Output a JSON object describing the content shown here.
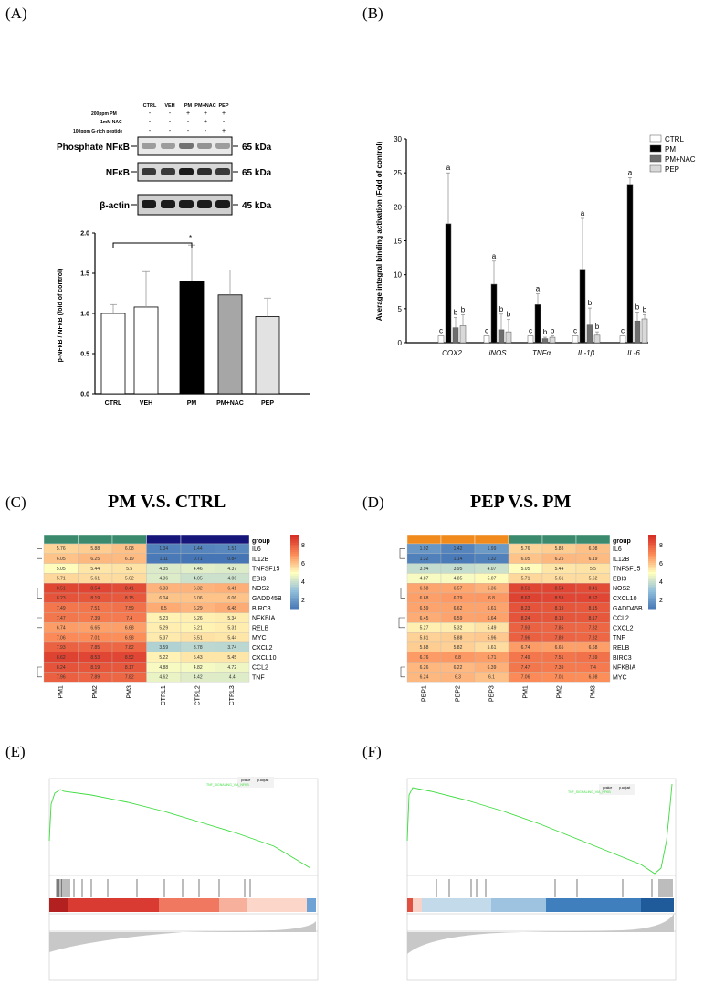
{
  "panel_labels": {
    "a": "(A)",
    "b": "(B)",
    "c": "(C)",
    "d": "(D)",
    "e": "(E)",
    "f": "(F)"
  },
  "panel_titles": {
    "c": "PM V.S. CTRL",
    "d": "PEP V.S. PM"
  },
  "western_blot": {
    "lane_labels": [
      "CTRL",
      "VEH",
      "PM",
      "PM+NAC",
      "PEP"
    ],
    "treatments": [
      {
        "name": "200ppm PM",
        "marks": [
          "-",
          "-",
          "+",
          "+",
          "+"
        ]
      },
      {
        "name": "1mM NAC",
        "marks": [
          "-",
          "-",
          "-",
          "+",
          "-"
        ]
      },
      {
        "name": "100ppm G-rich peptide",
        "marks": [
          "-",
          "-",
          "-",
          "-",
          "+"
        ]
      }
    ],
    "blots": [
      {
        "label": "Phosphate NFκB",
        "size": "65 kDa"
      },
      {
        "label": "NFκB",
        "size": "65 kDa"
      },
      {
        "label": "β-actin",
        "size": "45 kDa"
      }
    ]
  },
  "chart_data": [
    {
      "id": "A-bar",
      "type": "bar",
      "title": "",
      "categories": [
        "CTRL",
        "VEH",
        "PM",
        "PM+NAC",
        "PEP"
      ],
      "values": [
        1.0,
        1.08,
        1.4,
        1.23,
        0.96
      ],
      "errors": [
        0.11,
        0.44,
        0.45,
        0.31,
        0.23
      ],
      "colors": [
        "#ffffff",
        "#ffffff",
        "#000000",
        "#a6a6a6",
        "#e2e2e2"
      ],
      "ylabel": "p-NFκB / NFκB (fold of control)",
      "ylim": [
        0,
        2.0
      ],
      "yticks": [
        "0.0",
        "0.5",
        "1.0",
        "1.5",
        "2.0"
      ],
      "annotation": "*"
    },
    {
      "id": "B-bar",
      "type": "bar",
      "categories": [
        "COX2",
        "iNOS",
        "TNFα",
        "IL-1β",
        "IL-6"
      ],
      "series": [
        {
          "name": "CTRL",
          "color": "#ffffff",
          "values": [
            1,
            1,
            1,
            1,
            1
          ],
          "errors": [
            0,
            0,
            0,
            0,
            0
          ],
          "letters": [
            "c",
            "c",
            "c",
            "c",
            "c"
          ]
        },
        {
          "name": "PM",
          "color": "#000000",
          "values": [
            17.5,
            8.6,
            5.6,
            10.8,
            23.3
          ],
          "errors": [
            7.5,
            3.4,
            1.6,
            7.5,
            1.0
          ],
          "letters": [
            "a",
            "a",
            "a",
            "a",
            "a"
          ]
        },
        {
          "name": "PM+NAC",
          "color": "#6e6e6e",
          "values": [
            2.2,
            1.9,
            0.6,
            2.6,
            3.2
          ],
          "errors": [
            1.5,
            2.3,
            0.2,
            2.5,
            1.3
          ],
          "letters": [
            "b",
            "b",
            "b",
            "b",
            "b"
          ]
        },
        {
          "name": "PEP",
          "color": "#d9d9d9",
          "values": [
            2.5,
            1.6,
            0.8,
            1.1,
            3.5
          ],
          "errors": [
            1.6,
            1.8,
            0.2,
            0.5,
            0.6
          ],
          "letters": [
            "b",
            "b",
            "b",
            "b",
            "b"
          ]
        }
      ],
      "ylabel": "Average integral binding activation (Fold of control)",
      "ylim": [
        0,
        30
      ],
      "yticks": [
        "0",
        "5",
        "10",
        "15",
        "20",
        "25",
        "30"
      ]
    },
    {
      "id": "C-heatmap",
      "type": "heatmap",
      "columns": [
        "PM1",
        "PM2",
        "PM3",
        "CTRL1",
        "CTRL2",
        "CTRL3"
      ],
      "rows": [
        "IL6",
        "IL12B",
        "TNFSF15",
        "EBI3",
        "NOS2",
        "GADD45B",
        "BIRC3",
        "NFKBIA",
        "RELB",
        "MYC",
        "CXCL2",
        "CXCL10",
        "CCL2",
        "TNF"
      ],
      "values": [
        [
          5.76,
          5.88,
          6.08,
          1.34,
          1.44,
          1.51
        ],
        [
          6.05,
          6.25,
          6.19,
          1.11,
          0.71,
          0.84
        ],
        [
          5.05,
          5.44,
          5.5,
          4.35,
          4.46,
          4.37
        ],
        [
          5.71,
          5.61,
          5.62,
          4.36,
          4.05,
          4.06
        ],
        [
          8.51,
          8.54,
          8.41,
          6.33,
          6.32,
          6.41
        ],
        [
          8.23,
          8.19,
          8.15,
          6.04,
          6.06,
          6.06
        ],
        [
          7.49,
          7.51,
          7.59,
          6.5,
          6.29,
          6.48
        ],
        [
          7.47,
          7.39,
          7.4,
          5.23,
          5.26,
          5.34
        ],
        [
          6.74,
          6.65,
          6.68,
          5.29,
          5.21,
          5.31
        ],
        [
          7.06,
          7.01,
          6.98,
          5.37,
          5.51,
          5.44
        ],
        [
          7.93,
          7.85,
          7.82,
          3.59,
          3.78,
          3.74
        ],
        [
          8.62,
          8.53,
          8.52,
          5.22,
          5.43,
          5.45
        ],
        [
          8.24,
          8.19,
          8.17,
          4.88,
          4.82,
          4.72
        ],
        [
          7.96,
          7.89,
          7.82,
          4.62,
          4.42,
          4.4
        ]
      ],
      "legend_title": "group",
      "scale_ticks": [
        "8",
        "6",
        "4",
        "2"
      ]
    },
    {
      "id": "D-heatmap",
      "type": "heatmap",
      "columns": [
        "PEP1",
        "PEP2",
        "PEP3",
        "PM1",
        "PM2",
        "PM3"
      ],
      "rows": [
        "IL6",
        "IL12B",
        "TNFSF15",
        "EBI3",
        "NOS2",
        "CXCL10",
        "GADD45B",
        "CCL2",
        "CXCL2",
        "TNF",
        "RELB",
        "BIRC3",
        "NFKBIA",
        "MYC"
      ],
      "values": [
        [
          1.92,
          1.42,
          1.99,
          5.76,
          5.88,
          6.08
        ],
        [
          1.32,
          1.14,
          1.32,
          6.05,
          6.25,
          6.19
        ],
        [
          3.94,
          3.95,
          4.07,
          5.05,
          5.44,
          5.5
        ],
        [
          4.87,
          4.85,
          5.07,
          5.71,
          5.61,
          5.62
        ],
        [
          6.58,
          6.57,
          6.36,
          8.51,
          8.54,
          8.41
        ],
        [
          6.68,
          6.79,
          6.8,
          8.62,
          8.53,
          8.52
        ],
        [
          6.59,
          6.62,
          6.61,
          8.23,
          8.19,
          8.15
        ],
        [
          6.45,
          6.59,
          6.64,
          8.24,
          8.19,
          8.17
        ],
        [
          5.27,
          5.32,
          5.49,
          7.93,
          7.85,
          7.82
        ],
        [
          5.81,
          5.88,
          5.96,
          7.96,
          7.89,
          7.82
        ],
        [
          5.88,
          5.82,
          5.61,
          6.74,
          6.65,
          6.68
        ],
        [
          6.76,
          6.8,
          6.71,
          7.49,
          7.51,
          7.59
        ],
        [
          6.26,
          6.22,
          6.39,
          7.47,
          7.39,
          7.4
        ],
        [
          6.24,
          6.3,
          6.1,
          7.06,
          7.01,
          6.98
        ]
      ],
      "legend_title": "group",
      "scale_ticks": [
        "8",
        "6",
        "4",
        "2"
      ]
    },
    {
      "id": "E-gsea",
      "type": "line",
      "table_headers": [
        "pvalue",
        "p.adjust"
      ],
      "legend": "TNF_SIGNALING_VIA_NFKB"
    },
    {
      "id": "F-gsea",
      "type": "line",
      "table_headers": [
        "pvalue",
        "p.adjust"
      ],
      "legend": "TNF_SIGNALING_VIA_NFKB"
    }
  ]
}
